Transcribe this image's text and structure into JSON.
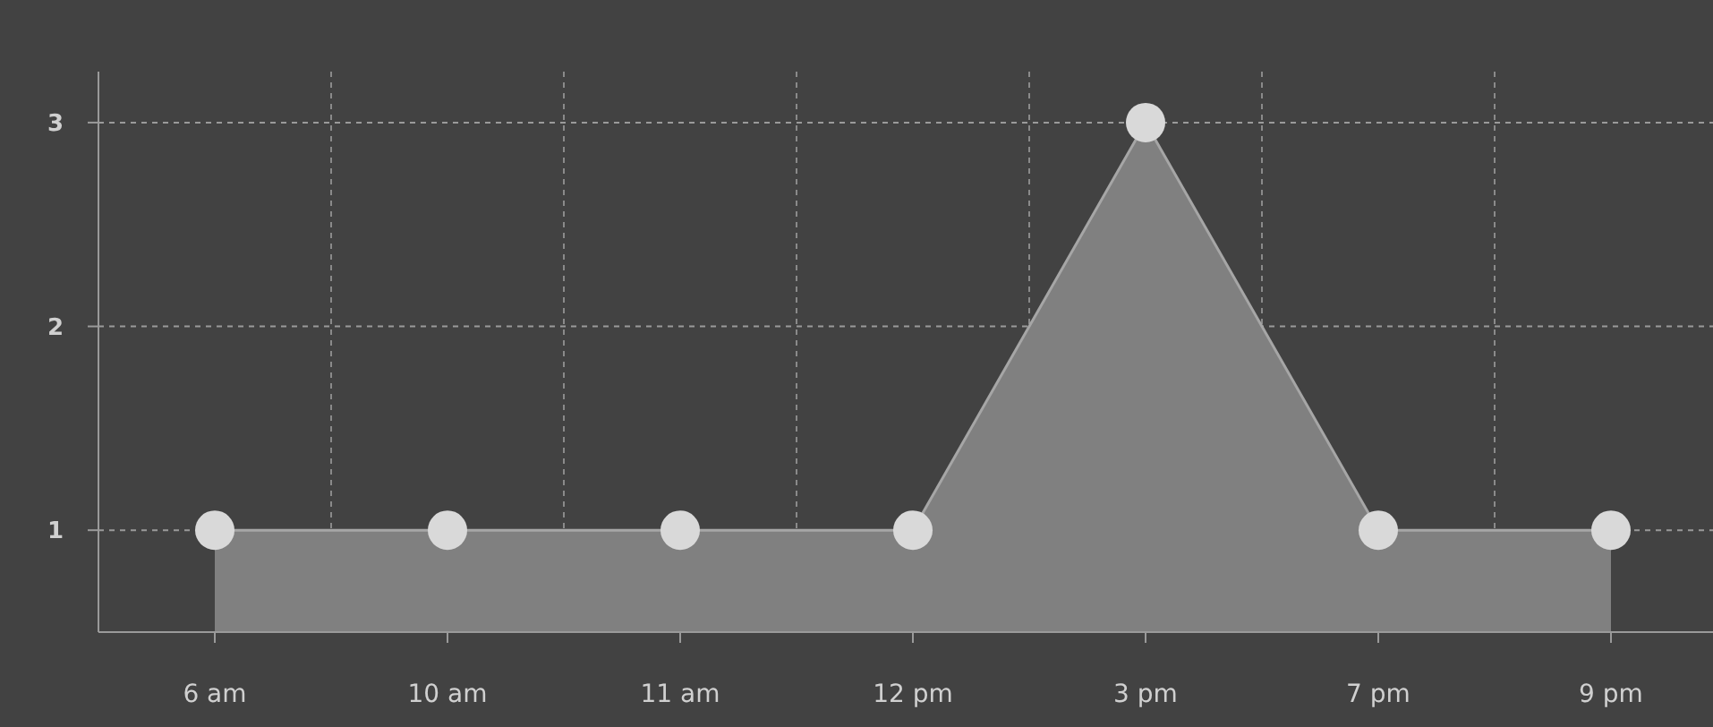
{
  "chart_data": {
    "type": "area",
    "categories": [
      "6 am",
      "10 am",
      "11 am",
      "12 pm",
      "3 pm",
      "7 pm",
      "9 pm"
    ],
    "series": [
      {
        "color": "#808080",
        "values": [
          1,
          1,
          1,
          1,
          3,
          1,
          1
        ]
      }
    ],
    "ylim": [
      0.5,
      3.25
    ],
    "yticks": [
      1,
      2,
      3
    ],
    "grid": true,
    "marker": "circle"
  }
}
